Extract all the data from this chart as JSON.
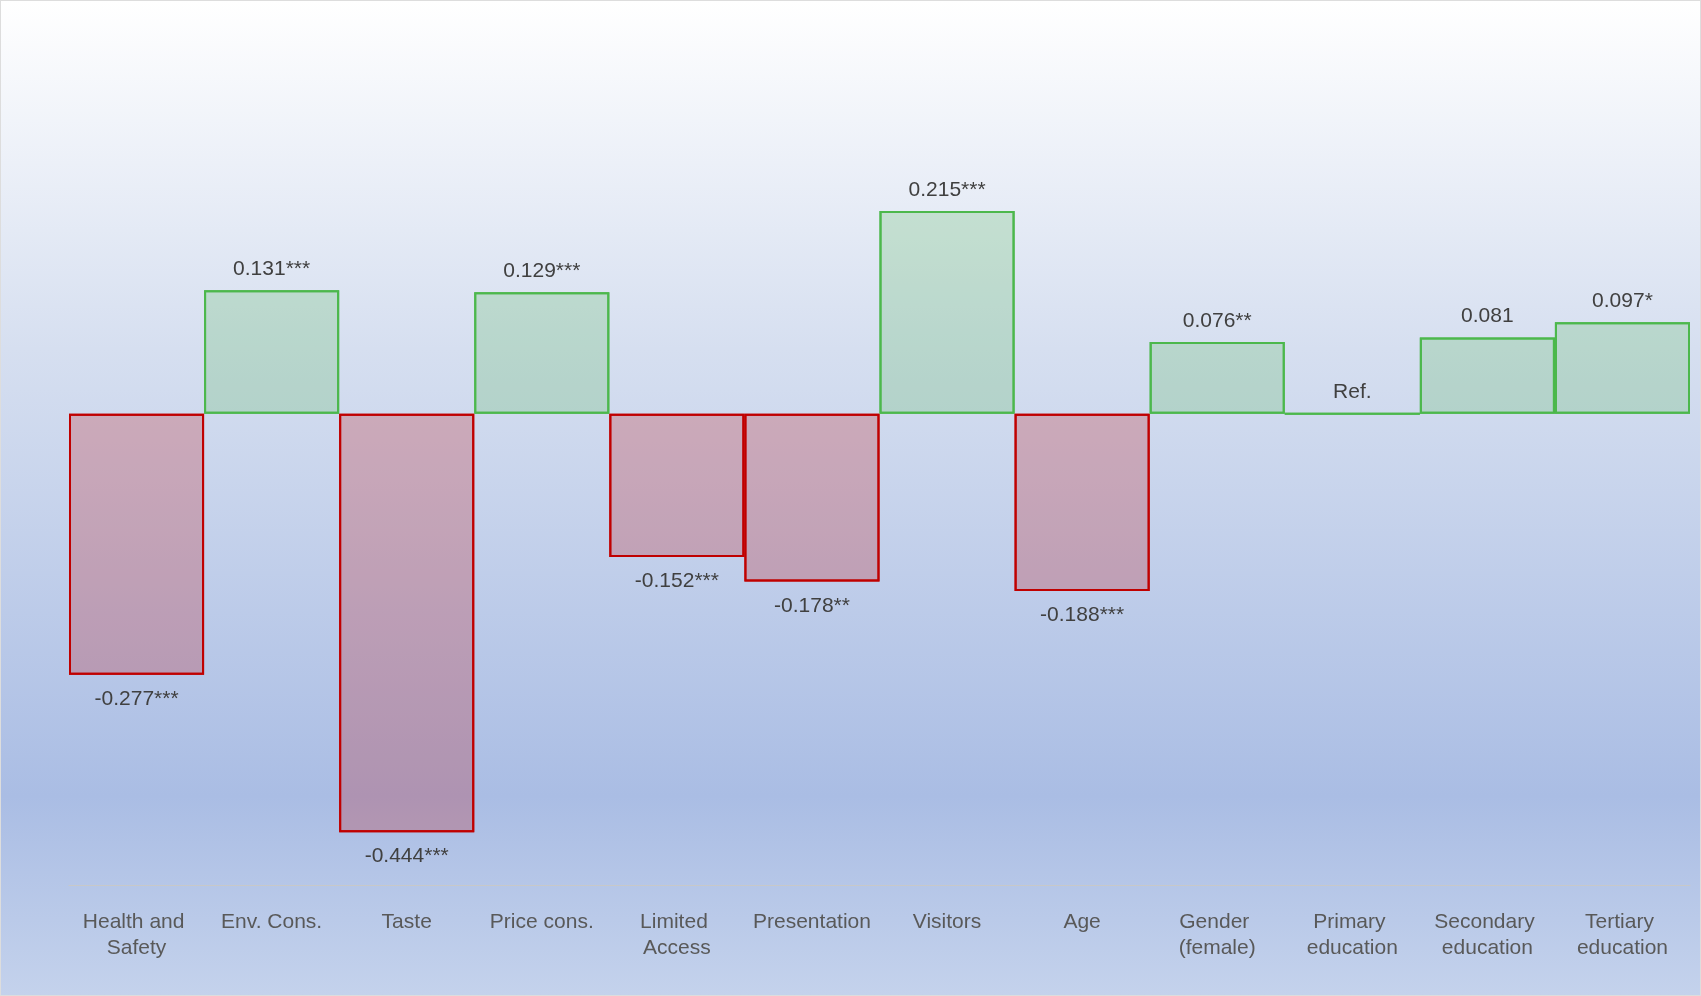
{
  "chart_data": {
    "type": "bar",
    "categories": [
      "Health and Safety",
      "Env. Cons.",
      "Taste",
      "Price cons.",
      "Limited Access",
      "Presentation",
      "Visitors",
      "Age",
      "Gender (female)",
      "Primary education",
      "Secondary education",
      "Tertiary education"
    ],
    "values": [
      -0.277,
      0.131,
      -0.444,
      0.129,
      -0.152,
      -0.178,
      0.215,
      -0.188,
      0.076,
      0,
      0.081,
      0.097
    ],
    "colors": [
      "#c00000",
      "#4cb84c",
      "#c00000",
      "#4cb84c",
      "#c00000",
      "#c00000",
      "#4cb84c",
      "#c00000",
      "#4cb84c",
      "#4cb84c",
      "#4cb84c",
      "#4cb84c"
    ],
    "value_labels": [
      "-0.277***",
      "0.131***",
      "-0.444***",
      "0.129***",
      "-0.152***",
      "-0.178**",
      "0.215***",
      "-0.188***",
      "0.076**",
      "Ref.",
      "0.081",
      "0.097*"
    ]
  }
}
